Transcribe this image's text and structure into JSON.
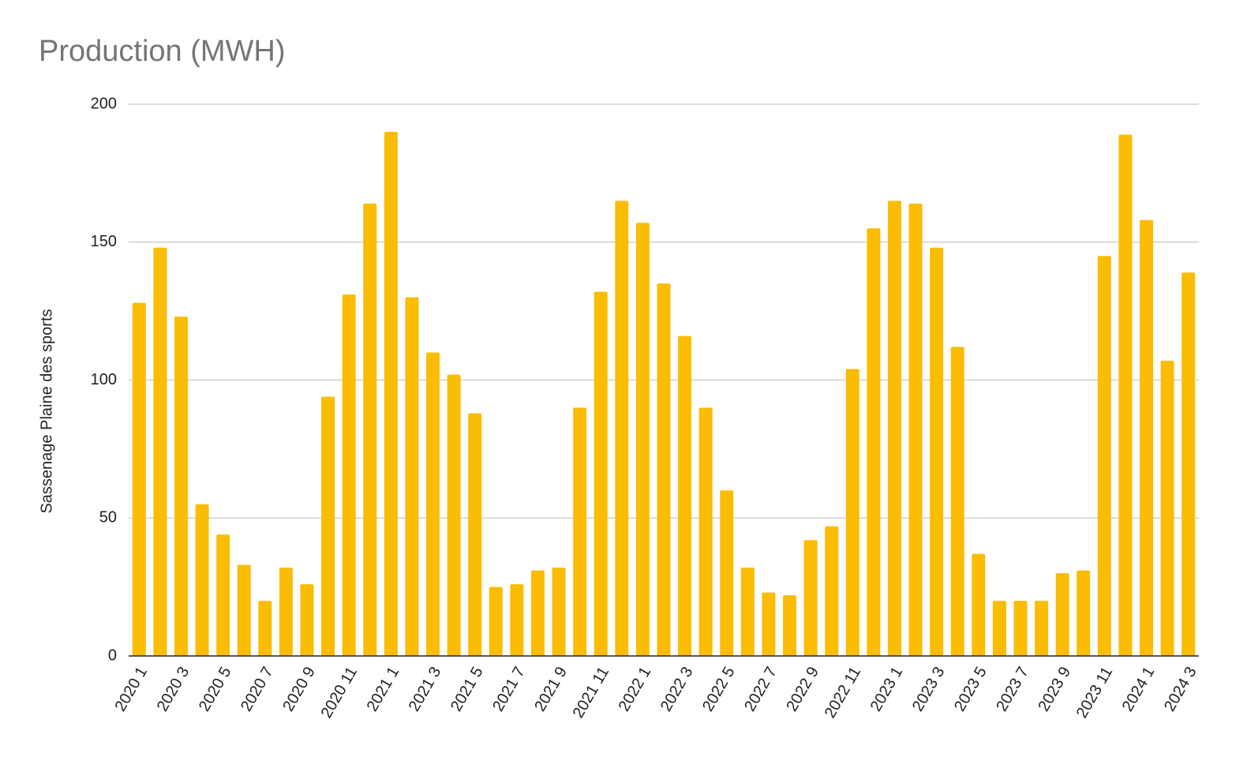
{
  "chart_data": {
    "type": "bar",
    "title": "Production (MWH)",
    "y_label": "Sassenage Plaine des sports",
    "categories": [
      "2020 1",
      null,
      "2020 3",
      null,
      "2020 5",
      null,
      "2020 7",
      null,
      "2020 9",
      null,
      "2020 11",
      null,
      "2021 1",
      null,
      "2021 3",
      null,
      "2021 5",
      null,
      "2021 7",
      null,
      "2021 9",
      null,
      "2021 11",
      null,
      "2022 1",
      null,
      "2022 3",
      null,
      "2022 5",
      null,
      "2022 7",
      null,
      "2022 9",
      null,
      "2022 11",
      null,
      "2023 1",
      null,
      "2023 3",
      null,
      "2023 5",
      null,
      "2023 7",
      null,
      "2023 9",
      null,
      "2023 11",
      null,
      "2024 1",
      null,
      "2024 3"
    ],
    "values": [
      128,
      148,
      123,
      55,
      44,
      33,
      20,
      32,
      26,
      94,
      131,
      164,
      190,
      130,
      110,
      102,
      88,
      25,
      26,
      31,
      32,
      90,
      132,
      165,
      157,
      135,
      116,
      90,
      60,
      32,
      23,
      22,
      42,
      47,
      104,
      155,
      165,
      164,
      148,
      112,
      37,
      20,
      20,
      20,
      30,
      31,
      145,
      189,
      158,
      107,
      139
    ],
    "color": "#fbbc04",
    "ylim": [
      0,
      200
    ],
    "yticks": [
      0,
      50,
      100,
      150,
      200
    ],
    "grid": true
  }
}
